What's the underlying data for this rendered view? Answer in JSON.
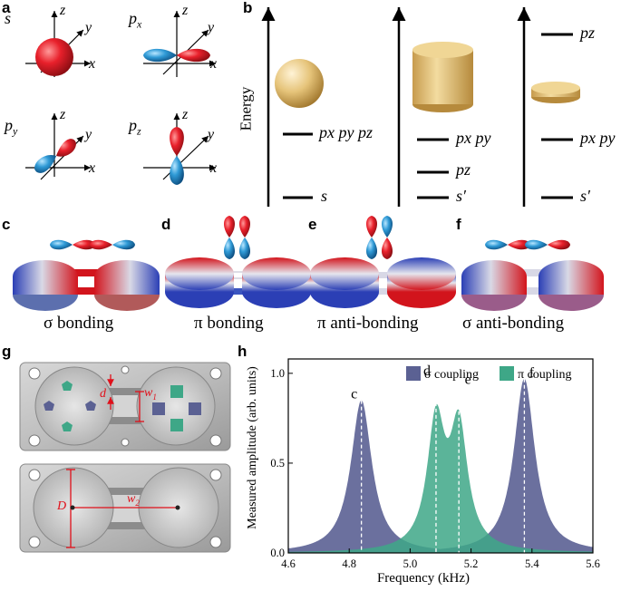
{
  "panels": {
    "a": "a",
    "b": "b",
    "c": "c",
    "d": "d",
    "e": "e",
    "f": "f",
    "g": "g",
    "h": "h"
  },
  "orbitals": {
    "s": "s",
    "px": "p",
    "px_sub": "x",
    "py": "p",
    "py_sub": "y",
    "pz": "p",
    "pz_sub": "z",
    "axis_x": "x",
    "axis_y": "y",
    "axis_z": "z"
  },
  "energy": {
    "ylabel": "Energy",
    "col1": {
      "upper": "px py pz",
      "lower": "s"
    },
    "col2": {
      "upper": "px py",
      "mid": "pz",
      "lower": "s′"
    },
    "col3": {
      "top": "pz",
      "upper": "px py",
      "lower": "s′"
    }
  },
  "bonding_captions": {
    "c": "σ bonding",
    "d": "π bonding",
    "e": "π anti-bonding",
    "f": "σ anti-bonding"
  },
  "photo_labels": {
    "d": "d",
    "w1": "w",
    "w1_sub": "1",
    "D": "D",
    "w2": "w",
    "w2_sub": "2"
  },
  "colors": {
    "sigma": "#5b6193",
    "pi": "#3ea787",
    "orb_red": "#e8202b",
    "orb_blue": "#2f9ad6",
    "gold": "#e6c47a"
  },
  "chart_data": {
    "type": "area",
    "xlabel": "Frequency (kHz)",
    "ylabel": "Measured amplitude (arb. units)",
    "xlim": [
      4.6,
      5.6
    ],
    "ylim": [
      0,
      1.08
    ],
    "xticks": [
      "4.6",
      "4.8",
      "5.0",
      "5.2",
      "5.4",
      "5.6"
    ],
    "yticks": [
      "0.0",
      "0.5",
      "1.0"
    ],
    "legend_position": "top-right",
    "series": [
      {
        "name": "σ coupling",
        "color": "#5b6193",
        "peaks": [
          {
            "x": 4.84,
            "y": 0.85,
            "label": "c"
          },
          {
            "x": 5.375,
            "y": 0.97,
            "label": "f"
          }
        ]
      },
      {
        "name": "π coupling",
        "color": "#3ea787",
        "peaks": [
          {
            "x": 5.085,
            "y": 0.98,
            "label": "d"
          },
          {
            "x": 5.16,
            "y": 0.93,
            "label": "e"
          }
        ]
      }
    ]
  }
}
